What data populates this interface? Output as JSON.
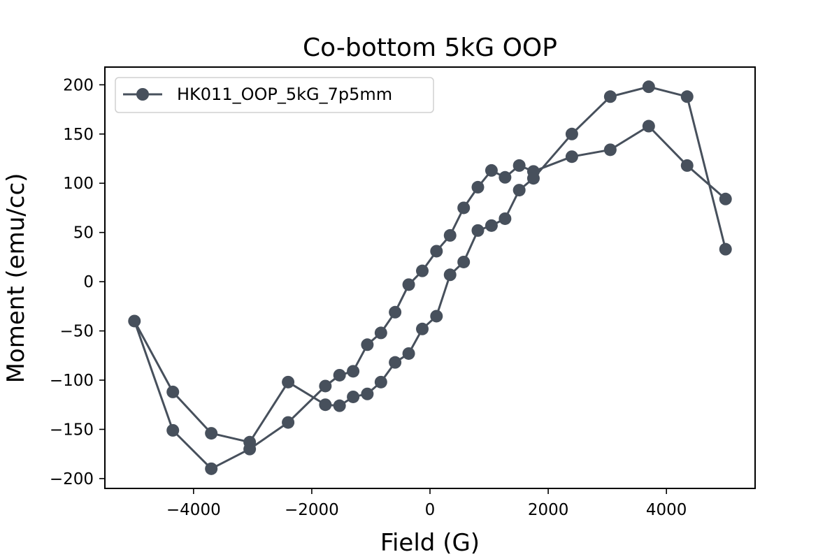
{
  "chart_data": {
    "type": "line",
    "title": "Co-bottom 5kG OOP",
    "xlabel": "Field (G)",
    "ylabel": "Moment (emu/cc)",
    "xlim": [
      -5500,
      5500
    ],
    "ylim": [
      -210,
      218
    ],
    "xticks": [
      -4000,
      -2000,
      0,
      2000,
      4000
    ],
    "xtick_labels": [
      "−4000",
      "−2000",
      "0",
      "2000",
      "4000"
    ],
    "yticks": [
      -200,
      -150,
      -100,
      -50,
      0,
      50,
      100,
      150,
      200
    ],
    "ytick_labels": [
      "−200",
      "−150",
      "−100",
      "−50",
      "0",
      "50",
      "100",
      "150",
      "200"
    ],
    "grid": false,
    "legend_position": "top-left",
    "color": "#47505c",
    "series": [
      {
        "name": "HK011_OOP_5kG_7p5mm",
        "x": [
          5000,
          4350,
          3700,
          3050,
          2400,
          1750,
          1510,
          1270,
          1040,
          810,
          570,
          340,
          110,
          -130,
          -360,
          -590,
          -830,
          -1060,
          -1300,
          -1530,
          -1770,
          -2400,
          -3050,
          -3700,
          -4350,
          -5000,
          -4350,
          -3700,
          -3050,
          -2400,
          -1770,
          -1530,
          -1300,
          -1060,
          -830,
          -590,
          -360,
          -130,
          110,
          340,
          570,
          810,
          1040,
          1270,
          1510,
          1750,
          2400,
          3050,
          3700,
          4350,
          5000
        ],
        "y": [
          84,
          118,
          158,
          134,
          127,
          112,
          118,
          106,
          113,
          96,
          75,
          47,
          31,
          11,
          -3,
          -31,
          -52,
          -64,
          -91,
          -95,
          -106,
          -143,
          -170,
          -190,
          -151,
          -40,
          -112,
          -154,
          -163,
          -102,
          -125,
          -126,
          -117,
          -114,
          -102,
          -82,
          -73,
          -48,
          -35,
          7,
          20,
          52,
          57,
          64,
          93,
          105,
          150,
          188,
          198,
          188,
          33
        ]
      }
    ]
  }
}
